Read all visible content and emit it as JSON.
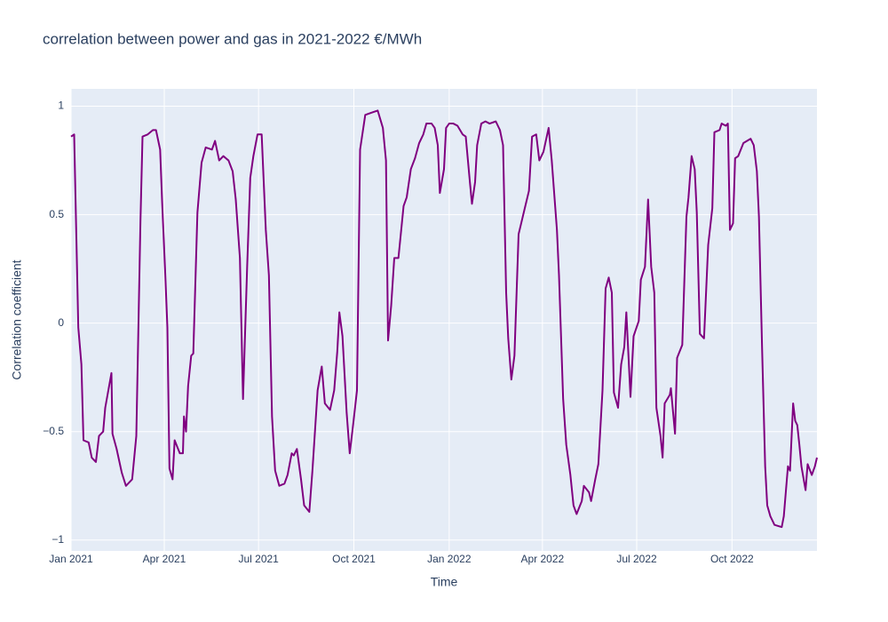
{
  "chart_data": {
    "type": "line",
    "title": "correlation between power and gas in 2021-2022 €/MWh",
    "x_label": "Time",
    "y_label": "Correlation coefficient",
    "color": "#800080",
    "grid": true,
    "xlim": [
      "2021-01-01",
      "2022-12-22"
    ],
    "ylim": [
      -1.05,
      1.08
    ],
    "xticks": [
      {
        "value": "2021-01-01",
        "label": "Jan 2021"
      },
      {
        "value": "2021-04-01",
        "label": "Apr 2021"
      },
      {
        "value": "2021-07-01",
        "label": "Jul 2021"
      },
      {
        "value": "2021-10-01",
        "label": "Oct 2021"
      },
      {
        "value": "2022-01-01",
        "label": "Jan 2022"
      },
      {
        "value": "2022-04-01",
        "label": "Apr 2022"
      },
      {
        "value": "2022-07-01",
        "label": "Jul 2022"
      },
      {
        "value": "2022-10-01",
        "label": "Oct 2022"
      }
    ],
    "yticks": [
      1,
      0.5,
      0,
      {
        "value": -0.5,
        "label": "−0.5"
      },
      {
        "value": -1,
        "label": "−1"
      }
    ],
    "x": [
      "2021-01-01",
      "2021-01-04",
      "2021-01-08",
      "2021-01-11",
      "2021-01-13",
      "2021-01-18",
      "2021-01-21",
      "2021-01-25",
      "2021-01-28",
      "2021-02-01",
      "2021-02-03",
      "2021-02-09",
      "2021-02-10",
      "2021-02-14",
      "2021-02-19",
      "2021-02-23",
      "2021-03-01",
      "2021-03-05",
      "2021-03-09",
      "2021-03-11",
      "2021-03-16",
      "2021-03-21",
      "2021-03-24",
      "2021-03-28",
      "2021-03-30",
      "2021-04-02",
      "2021-04-04",
      "2021-04-06",
      "2021-04-09",
      "2021-04-11",
      "2021-04-16",
      "2021-04-19",
      "2021-04-20",
      "2021-04-22",
      "2021-04-24",
      "2021-04-27",
      "2021-04-29",
      "2021-05-03",
      "2021-05-07",
      "2021-05-11",
      "2021-05-17",
      "2021-05-20",
      "2021-05-24",
      "2021-05-28",
      "2021-06-02",
      "2021-06-06",
      "2021-06-09",
      "2021-06-13",
      "2021-06-16",
      "2021-06-20",
      "2021-06-23",
      "2021-06-26",
      "2021-06-30",
      "2021-07-04",
      "2021-07-08",
      "2021-07-11",
      "2021-07-14",
      "2021-07-17",
      "2021-07-21",
      "2021-07-26",
      "2021-07-29",
      "2021-08-02",
      "2021-08-04",
      "2021-08-07",
      "2021-08-11",
      "2021-08-14",
      "2021-08-19",
      "2021-08-22",
      "2021-08-27",
      "2021-08-31",
      "2021-09-03",
      "2021-09-08",
      "2021-09-12",
      "2021-09-15",
      "2021-09-17",
      "2021-09-20",
      "2021-09-24",
      "2021-09-27",
      "2021-09-30",
      "2021-10-04",
      "2021-10-07",
      "2021-10-12",
      "2021-10-18",
      "2021-10-24",
      "2021-10-29",
      "2021-11-01",
      "2021-11-03",
      "2021-11-06",
      "2021-11-09",
      "2021-11-13",
      "2021-11-18",
      "2021-11-21",
      "2021-11-25",
      "2021-11-29",
      "2021-12-03",
      "2021-12-07",
      "2021-12-10",
      "2021-12-15",
      "2021-12-18",
      "2021-12-21",
      "2021-12-23",
      "2021-12-27",
      "2021-12-29",
      "2022-01-01",
      "2022-01-05",
      "2022-01-09",
      "2022-01-14",
      "2022-01-17",
      "2022-01-21",
      "2022-01-23",
      "2022-01-26",
      "2022-01-28",
      "2022-02-01",
      "2022-02-05",
      "2022-02-09",
      "2022-02-15",
      "2022-02-19",
      "2022-02-22",
      "2022-02-25",
      "2022-02-27",
      "2022-03-02",
      "2022-03-05",
      "2022-03-09",
      "2022-03-11",
      "2022-03-14",
      "2022-03-19",
      "2022-03-22",
      "2022-03-26",
      "2022-03-29",
      "2022-04-02",
      "2022-04-07",
      "2022-04-10",
      "2022-04-15",
      "2022-04-17",
      "2022-04-21",
      "2022-04-24",
      "2022-04-28",
      "2022-05-01",
      "2022-05-04",
      "2022-05-09",
      "2022-05-11",
      "2022-05-16",
      "2022-05-18",
      "2022-05-22",
      "2022-05-25",
      "2022-05-29",
      "2022-06-01",
      "2022-06-04",
      "2022-06-07",
      "2022-06-09",
      "2022-06-13",
      "2022-06-16",
      "2022-06-19",
      "2022-06-21",
      "2022-06-25",
      "2022-06-28",
      "2022-07-03",
      "2022-07-05",
      "2022-07-09",
      "2022-07-12",
      "2022-07-15",
      "2022-07-18",
      "2022-07-20",
      "2022-07-24",
      "2022-07-26",
      "2022-07-28",
      "2022-08-02",
      "2022-08-03",
      "2022-08-07",
      "2022-08-09",
      "2022-08-14",
      "2022-08-18",
      "2022-08-20",
      "2022-08-23",
      "2022-08-26",
      "2022-08-28",
      "2022-08-31",
      "2022-09-04",
      "2022-09-08",
      "2022-09-12",
      "2022-09-14",
      "2022-09-19",
      "2022-09-21",
      "2022-09-25",
      "2022-09-27",
      "2022-09-29",
      "2022-10-02",
      "2022-10-04",
      "2022-10-07",
      "2022-10-12",
      "2022-10-19",
      "2022-10-22",
      "2022-10-25",
      "2022-10-27",
      "2022-10-30",
      "2022-11-02",
      "2022-11-04",
      "2022-11-07",
      "2022-11-11",
      "2022-11-18",
      "2022-11-20",
      "2022-11-24",
      "2022-11-26",
      "2022-11-29",
      "2022-12-01",
      "2022-12-03",
      "2022-12-05",
      "2022-12-07",
      "2022-12-11",
      "2022-12-13",
      "2022-12-17",
      "2022-12-20",
      "2022-12-22"
    ],
    "values": [
      0.86,
      0.87,
      -0.02,
      -0.19,
      -0.54,
      -0.55,
      -0.62,
      -0.64,
      -0.52,
      -0.5,
      -0.39,
      -0.23,
      -0.51,
      -0.58,
      -0.69,
      -0.75,
      -0.72,
      -0.52,
      0.47,
      0.86,
      0.87,
      0.89,
      0.89,
      0.8,
      0.55,
      0.22,
      -0.02,
      -0.67,
      -0.72,
      -0.54,
      -0.6,
      -0.6,
      -0.43,
      -0.5,
      -0.29,
      -0.15,
      -0.14,
      0.51,
      0.74,
      0.81,
      0.8,
      0.84,
      0.75,
      0.77,
      0.75,
      0.7,
      0.57,
      0.3,
      -0.35,
      0.26,
      0.67,
      0.77,
      0.87,
      0.87,
      0.43,
      0.22,
      -0.43,
      -0.68,
      -0.75,
      -0.74,
      -0.7,
      -0.6,
      -0.61,
      -0.58,
      -0.72,
      -0.84,
      -0.87,
      -0.68,
      -0.31,
      -0.2,
      -0.37,
      -0.4,
      -0.31,
      -0.13,
      0.05,
      -0.06,
      -0.41,
      -0.6,
      -0.48,
      -0.31,
      0.8,
      0.96,
      0.97,
      0.98,
      0.9,
      0.75,
      -0.08,
      0.08,
      0.3,
      0.3,
      0.54,
      0.58,
      0.71,
      0.76,
      0.83,
      0.87,
      0.92,
      0.92,
      0.9,
      0.82,
      0.6,
      0.71,
      0.9,
      0.92,
      0.92,
      0.91,
      0.87,
      0.86,
      0.65,
      0.55,
      0.65,
      0.82,
      0.92,
      0.93,
      0.92,
      0.93,
      0.89,
      0.82,
      0.14,
      -0.07,
      -0.26,
      -0.15,
      0.41,
      0.45,
      0.51,
      0.61,
      0.86,
      0.87,
      0.75,
      0.79,
      0.9,
      0.75,
      0.43,
      0.22,
      -0.35,
      -0.56,
      -0.7,
      -0.84,
      -0.88,
      -0.82,
      -0.75,
      -0.78,
      -0.82,
      -0.72,
      -0.65,
      -0.31,
      0.16,
      0.21,
      0.14,
      -0.32,
      -0.39,
      -0.19,
      -0.11,
      0.05,
      -0.34,
      -0.06,
      0.01,
      0.2,
      0.26,
      0.57,
      0.26,
      0.14,
      -0.39,
      -0.52,
      -0.62,
      -0.37,
      -0.33,
      -0.3,
      -0.51,
      -0.16,
      -0.1,
      0.49,
      0.58,
      0.77,
      0.71,
      0.51,
      -0.05,
      -0.07,
      0.36,
      0.53,
      0.88,
      0.89,
      0.92,
      0.91,
      0.92,
      0.43,
      0.46,
      0.76,
      0.77,
      0.83,
      0.85,
      0.82,
      0.7,
      0.49,
      -0.11,
      -0.66,
      -0.84,
      -0.89,
      -0.93,
      -0.94,
      -0.89,
      -0.66,
      -0.68,
      -0.37,
      -0.45,
      -0.47,
      -0.56,
      -0.66,
      -0.77,
      -0.65,
      -0.7,
      -0.66,
      -0.62
    ]
  }
}
